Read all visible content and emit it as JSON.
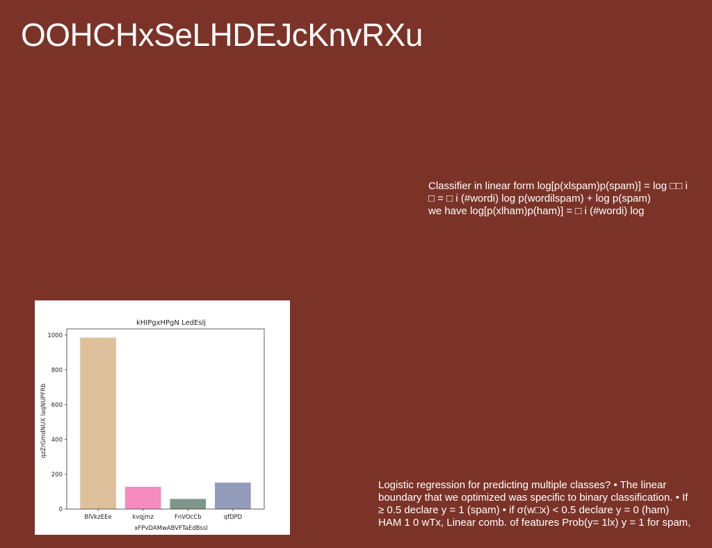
{
  "slide": {
    "title": "OOHCHxSeLHDEJcKnvRXu",
    "background_color": "#7b3328",
    "text_block_1": [
      "Classifier in linear form log[p(xlspam)p(spam)] = log □□ i",
      "□ = □ i (#wordi) log p(wordilspam) + log p(spam)",
      "we have log[p(xlham)p(ham)] = □ i (#wordi) log"
    ],
    "text_block_2": [
      "Logistic regression for predicting multiple classes? • The linear",
      "boundary that we optimized was specific to binary classification. • If",
      "≥ 0.5 declare y = 1 (spam) • if σ(w□x) < 0.5 declare y = 0 (ham)",
      "HAM 1 0 wTx, Linear comb. of features Prob(y= 1lx) y = 1 for spam,"
    ]
  },
  "chart_data": {
    "type": "bar",
    "title": "kHIPgxHPgN LedEslj",
    "xlabel": "xFPvDAMwABVFTaEdBssl",
    "ylabel": "qzZrGmdNUX laqNUPFRb",
    "categories": [
      "BlVkzEEe",
      "kvqjmz",
      "FnVOcCb",
      "qfDPD"
    ],
    "values": [
      985,
      128,
      58,
      152
    ],
    "colors": [
      "#dfc09c",
      "#f58bbf",
      "#7e958c",
      "#949cbb"
    ],
    "ylim": [
      0,
      1035
    ],
    "yticks": [
      0,
      200,
      400,
      600,
      800,
      1000
    ],
    "grid": false
  }
}
